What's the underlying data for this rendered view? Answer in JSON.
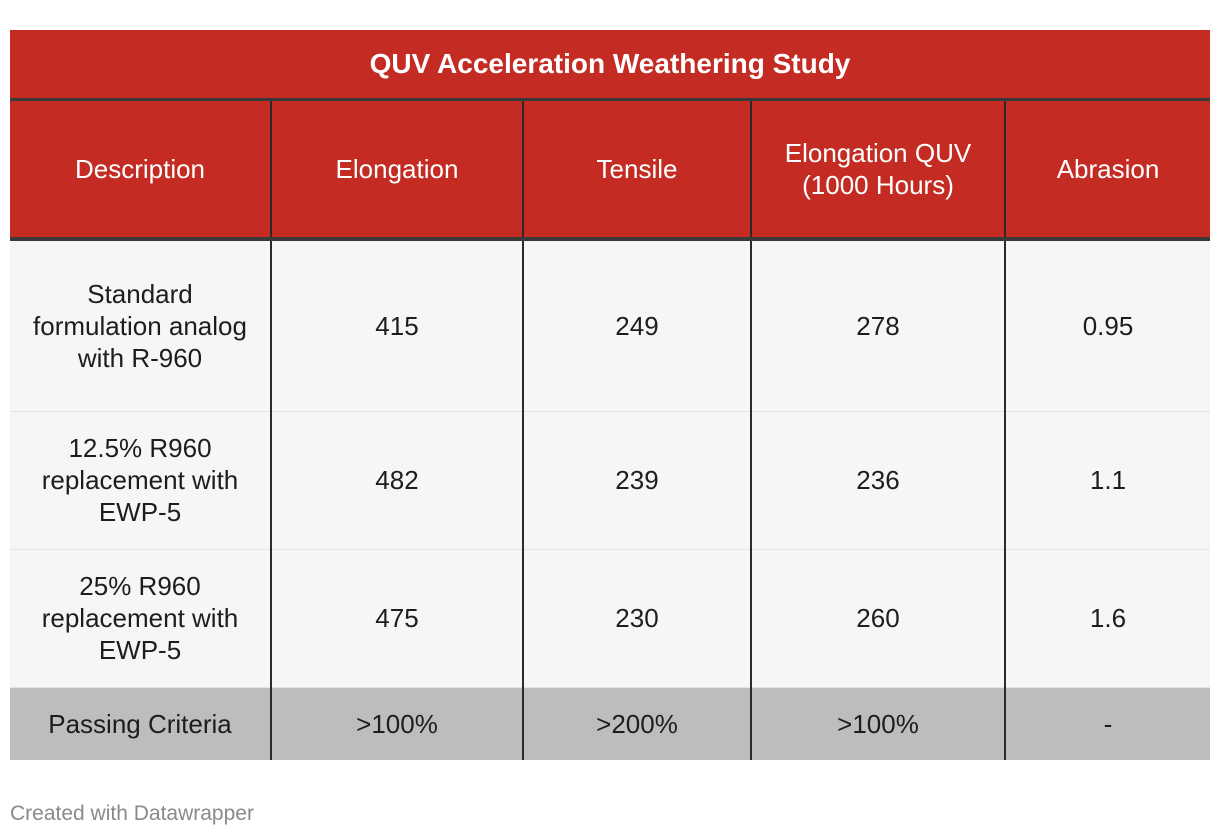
{
  "table": {
    "title": "QUV Acceleration Weathering Study",
    "headers": [
      "Description",
      "Elongation",
      "Tensile",
      "Elongation QUV (1000 Hours)",
      "Abrasion"
    ],
    "rows": [
      [
        "Standard formulation analog with R-960",
        "415",
        "249",
        "278",
        "0.95"
      ],
      [
        "12.5% R960 replacement with EWP-5",
        "482",
        "239",
        "236",
        "1.1"
      ],
      [
        "25% R960 replacement with EWP-5",
        "475",
        "230",
        "260",
        "1.6"
      ]
    ],
    "passing_row": [
      "Passing Criteria",
      ">100%",
      ">200%",
      ">100%",
      "-"
    ]
  },
  "footer": {
    "credit": "Created with Datawrapper"
  },
  "colors": {
    "header_red": "#c42b22",
    "row_bg": "#f6f6f6",
    "passing_bg": "#bdbdbd",
    "footer_text": "#8a8a8a"
  }
}
